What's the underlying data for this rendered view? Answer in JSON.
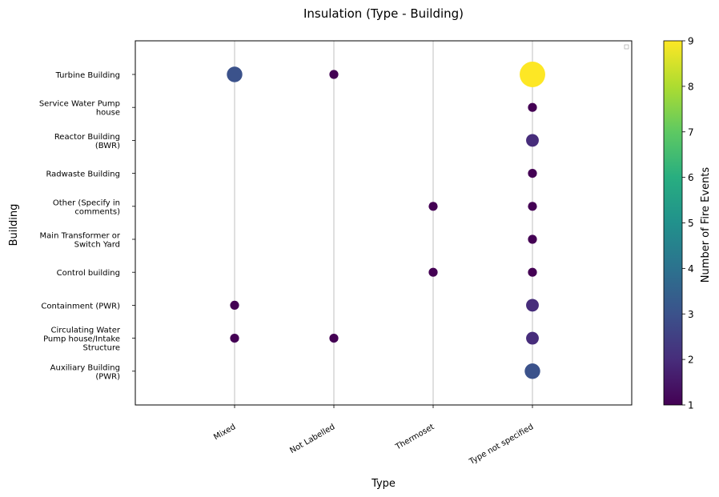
{
  "chart_data": {
    "type": "scatter",
    "title": "Insulation (Type - Building)",
    "xlabel": "Type",
    "ylabel": "Building",
    "x_categories": [
      "Mixed",
      "Not Labelled",
      "Thermoset",
      "Type not specified"
    ],
    "y_categories": [
      [
        "Auxiliary Building",
        "(PWR)"
      ],
      [
        "Circulating Water",
        "Pump house/Intake",
        "Structure"
      ],
      [
        "Containment (PWR)"
      ],
      [
        "Control building"
      ],
      [
        "Main Transformer or",
        "Switch Yard"
      ],
      [
        "Other (Specify in",
        "comments)"
      ],
      [
        "Radwaste Building"
      ],
      [
        "Reactor Building",
        "(BWR)"
      ],
      [
        "Service Water Pump",
        "house"
      ],
      [
        "Turbine Building"
      ]
    ],
    "points": [
      {
        "x": "Mixed",
        "y": "Turbine Building",
        "count": 3
      },
      {
        "x": "Not Labelled",
        "y": "Turbine Building",
        "count": 1
      },
      {
        "x": "Type not specified",
        "y": "Turbine Building",
        "count": 9
      },
      {
        "x": "Type not specified",
        "y": "Service Water Pump house",
        "count": 1
      },
      {
        "x": "Type not specified",
        "y": "Reactor Building (BWR)",
        "count": 2
      },
      {
        "x": "Type not specified",
        "y": "Radwaste Building",
        "count": 1
      },
      {
        "x": "Thermoset",
        "y": "Other (Specify in comments)",
        "count": 1
      },
      {
        "x": "Type not specified",
        "y": "Other (Specify in comments)",
        "count": 1
      },
      {
        "x": "Type not specified",
        "y": "Main Transformer or Switch Yard",
        "count": 1
      },
      {
        "x": "Thermoset",
        "y": "Control building",
        "count": 1
      },
      {
        "x": "Type not specified",
        "y": "Control building",
        "count": 1
      },
      {
        "x": "Mixed",
        "y": "Containment (PWR)",
        "count": 1
      },
      {
        "x": "Type not specified",
        "y": "Containment (PWR)",
        "count": 2
      },
      {
        "x": "Mixed",
        "y": "Circulating Water Pump house/Intake Structure",
        "count": 1
      },
      {
        "x": "Not Labelled",
        "y": "Circulating Water Pump house/Intake Structure",
        "count": 1
      },
      {
        "x": "Type not specified",
        "y": "Circulating Water Pump house/Intake Structure",
        "count": 2
      },
      {
        "x": "Type not specified",
        "y": "Auxiliary Building (PWR)",
        "count": 3
      }
    ],
    "colorbar": {
      "label": "Number of Fire Events",
      "min": 1,
      "max": 9,
      "ticks": [
        "1",
        "2",
        "3",
        "4",
        "5",
        "6",
        "7",
        "8",
        "9"
      ],
      "colormap": "viridis"
    },
    "grid": "vertical lines at x categories",
    "legend": "top-right (empty)"
  }
}
